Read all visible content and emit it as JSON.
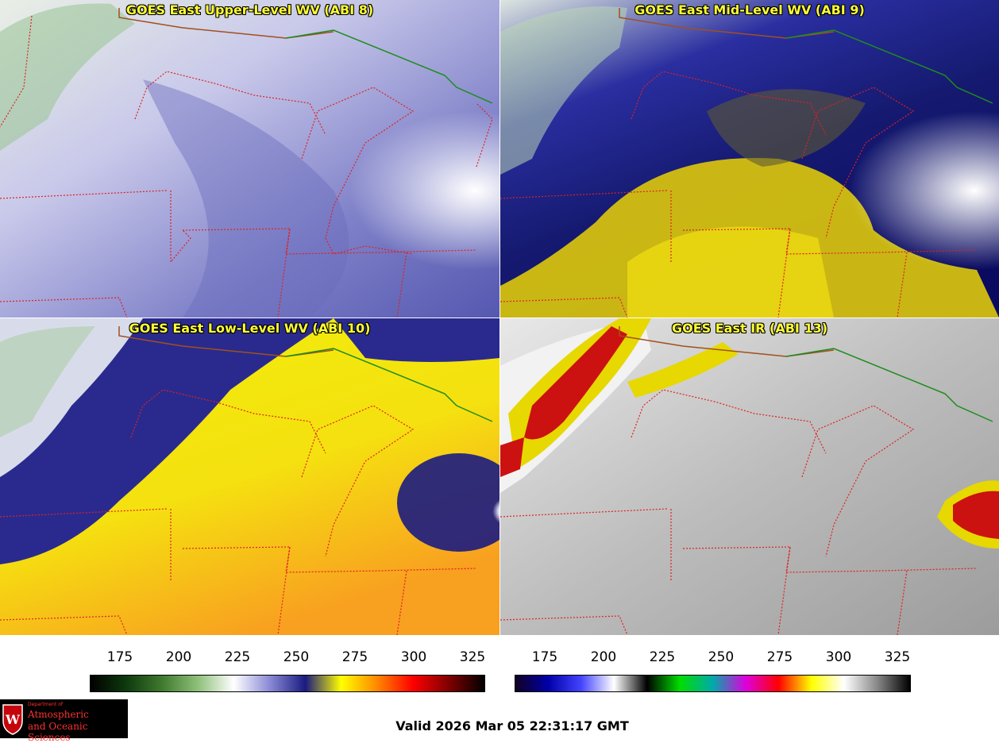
{
  "panels": {
    "upper": {
      "title": "GOES East Upper-Level WV (ABI 8)"
    },
    "mid": {
      "title": "GOES East Mid-Level WV (ABI 9)"
    },
    "low": {
      "title": "GOES East Low-Level WV (ABI 10)"
    },
    "ir": {
      "title": "GOES East IR (ABI 13)"
    }
  },
  "colorbars": {
    "wv": {
      "ticks": [
        "175",
        "200",
        "225",
        "250",
        "275",
        "300",
        "325"
      ],
      "stops": [
        "#000000",
        "#0e3a0e",
        "#3f7a2e",
        "#8fc07a",
        "#ffffff",
        "#8a8ad6",
        "#1a1a80",
        "#ffff00",
        "#ff8800",
        "#ff0000",
        "#800000",
        "#000000"
      ]
    },
    "ir": {
      "ticks": [
        "175",
        "200",
        "225",
        "250",
        "275",
        "300",
        "325"
      ],
      "stops": [
        "#110022",
        "#0000aa",
        "#4444ff",
        "#ffffff",
        "#000000",
        "#00dd00",
        "#00aaaa",
        "#dd00dd",
        "#ff0000",
        "#ffff00",
        "#ffffff",
        "#888888",
        "#000000"
      ]
    }
  },
  "logo": {
    "line1": "Department of",
    "line2": "Atmospheric",
    "line3": "and Oceanic Sciences"
  },
  "valid_text": "Valid 2026 Mar 05 22:31:17 GMT"
}
